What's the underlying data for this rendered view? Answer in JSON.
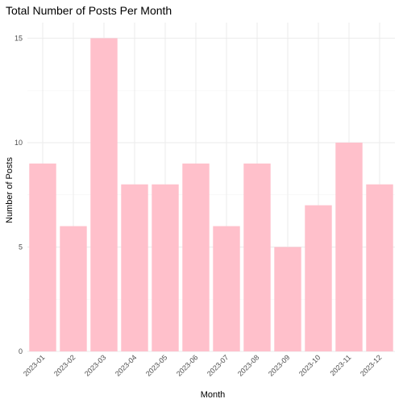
{
  "chart_data": {
    "type": "bar",
    "title": "Total Number of Posts Per Month",
    "xlabel": "Month",
    "ylabel": "Number of Posts",
    "categories": [
      "2023-01",
      "2023-02",
      "2023-03",
      "2023-04",
      "2023-05",
      "2023-06",
      "2023-07",
      "2023-08",
      "2023-09",
      "2023-10",
      "2023-11",
      "2023-12"
    ],
    "values": [
      9,
      6,
      15,
      8,
      8,
      9,
      6,
      9,
      5,
      7,
      10,
      8
    ],
    "ylim": [
      0,
      15.75
    ],
    "yticks": [
      0,
      5,
      10,
      15
    ],
    "grid": true,
    "legend": "none",
    "bar_color": "#ffc0cb",
    "grid_color": "#ebebeb"
  }
}
